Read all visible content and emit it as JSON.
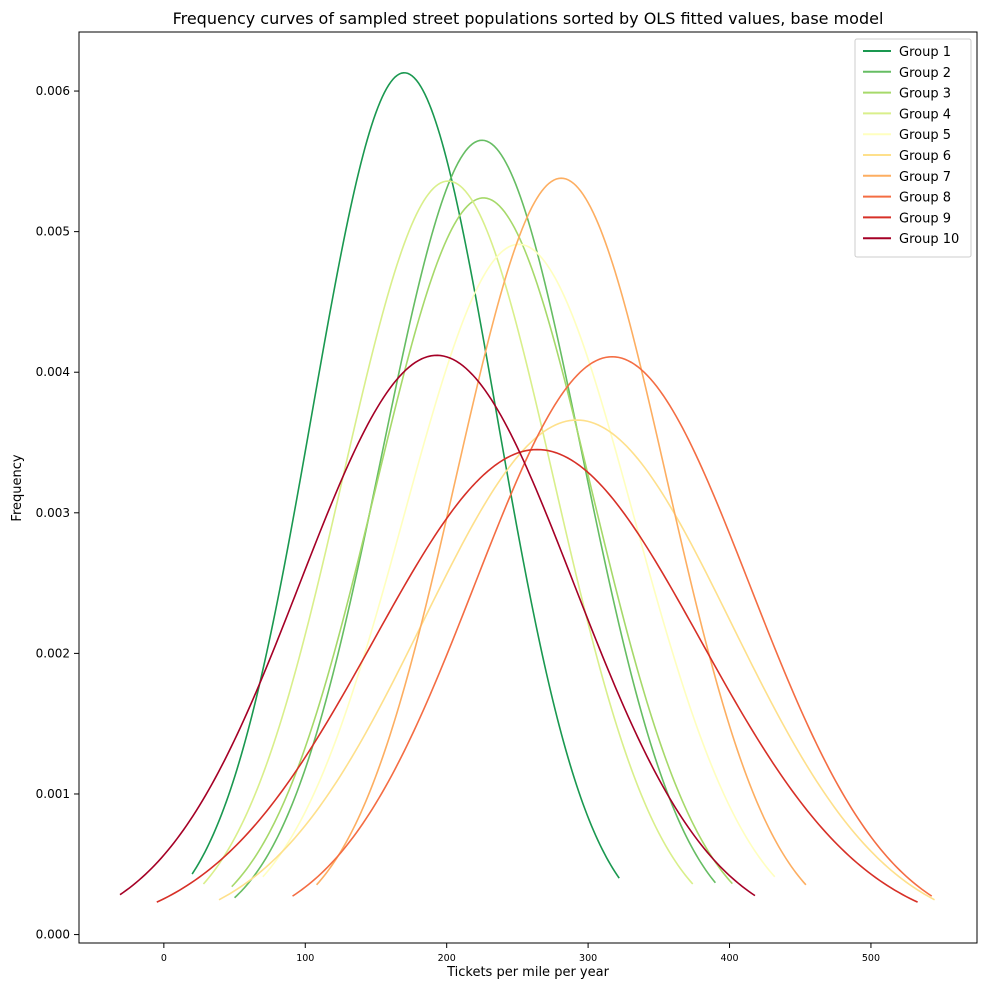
{
  "chart_data": {
    "type": "line",
    "title": "Frequency curves of sampled street populations sorted by OLS fitted values,  base model",
    "xlabel": "Tickets per mile per year",
    "ylabel": "Frequency",
    "xlim": [
      -60,
      575
    ],
    "ylim": [
      -6e-05,
      0.00642
    ],
    "xticks": [
      0,
      100,
      200,
      300,
      400,
      500
    ],
    "xtick_labels": [
      "0",
      "100",
      "200",
      "300",
      "400",
      "500"
    ],
    "yticks": [
      0.0,
      0.001,
      0.002,
      0.003,
      0.004,
      0.005,
      0.006
    ],
    "ytick_labels": [
      "0.000",
      "0.001",
      "0.002",
      "0.003",
      "0.004",
      "0.005",
      "0.006"
    ],
    "grid": false,
    "legend_position": "top-right",
    "curve_shape": "normal density",
    "series": [
      {
        "name": "Group 1",
        "color": "#1a9850",
        "mean": 170,
        "peak": 0.00613,
        "x_start": 20,
        "x_end": 322
      },
      {
        "name": "Group 2",
        "color": "#66bd63",
        "mean": 225,
        "peak": 0.00565,
        "x_start": 50,
        "x_end": 390
      },
      {
        "name": "Group 3",
        "color": "#a6d96a",
        "mean": 226,
        "peak": 0.00524,
        "x_start": 48,
        "x_end": 402
      },
      {
        "name": "Group 4",
        "color": "#d9ef8b",
        "mean": 201,
        "peak": 0.00536,
        "x_start": 28,
        "x_end": 374
      },
      {
        "name": "Group 5",
        "color": "#ffffbf",
        "mean": 251,
        "peak": 0.00491,
        "x_start": 70,
        "x_end": 432
      },
      {
        "name": "Group 6",
        "color": "#fee08b",
        "mean": 292,
        "peak": 0.00366,
        "x_start": 39,
        "x_end": 545
      },
      {
        "name": "Group 7",
        "color": "#fdae61",
        "mean": 281,
        "peak": 0.00538,
        "x_start": 108,
        "x_end": 454
      },
      {
        "name": "Group 8",
        "color": "#f46d43",
        "mean": 317,
        "peak": 0.00411,
        "x_start": 91,
        "x_end": 543
      },
      {
        "name": "Group 9",
        "color": "#d73027",
        "mean": 264,
        "peak": 0.00345,
        "x_start": -5,
        "x_end": 533
      },
      {
        "name": "Group 10",
        "color": "#a50026",
        "mean": 193,
        "peak": 0.00412,
        "x_start": -31,
        "x_end": 418
      }
    ]
  }
}
